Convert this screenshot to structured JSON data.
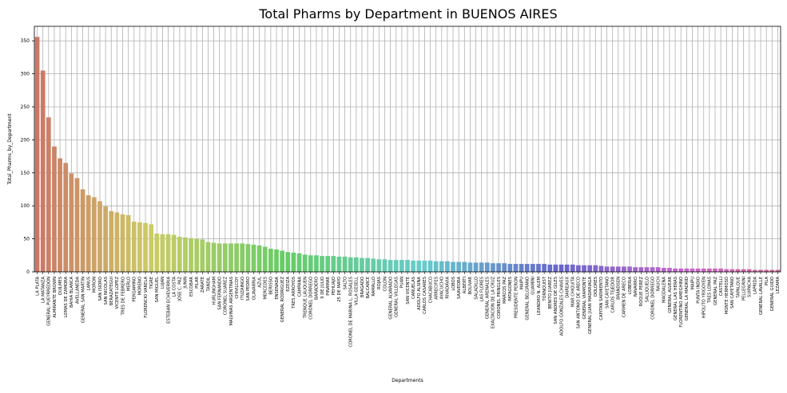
{
  "chart_data": {
    "type": "bar",
    "title": "Total Pharms by Department in BUENOS AIRES",
    "xlabel": "Departments",
    "ylabel": "Total_Pharms_by_Department",
    "ylim": [
      0,
      372
    ],
    "yticks": [
      0,
      50,
      100,
      150,
      200,
      250,
      300,
      350
    ],
    "grid": true,
    "palette": "husl",
    "categories": [
      "LA PLATA",
      "LA MATANZA",
      "GENERAL PUEYRREDON",
      "ALMIRANTE BROWN",
      "QUILMES",
      "LOMAS DE ZAMORA",
      "BAHIA BLANCA",
      "AVELLANEDA",
      "GENERAL SAN MARTIN",
      "LANUS",
      "MORON",
      "SAN ISIDRO",
      "SAN NICOLAS",
      "BERAZATEGUI",
      "VICENTE LOPEZ",
      "TRES DE FEBRERO",
      "MERLO",
      "PERGAMINO",
      "MORENO",
      "FLORENCIO VARELA",
      "TIGRE",
      "SAN MIGUEL",
      "LUJAN",
      "ESTEBAN ECHEVERRIA",
      "LA COSTA",
      "JOSE C. PAZ",
      "JUNIN",
      "ESCOBAR",
      "PILAR",
      "ZARATE",
      "TANDIL",
      "HURLINGHAM",
      "SAN FERNANDO",
      "CORONEL SUAREZ",
      "MALVINAS ARGENTINAS",
      "CHIVILCOY",
      "ITUZAINGO",
      "SAN PEDRO",
      "OLAVARRIA",
      "AZUL",
      "MERCEDES",
      "BERISSO",
      "ENSENADA",
      "GENERAL RODRIGUEZ",
      "EZEIZA",
      "TRES ARROYOS",
      "CAMPANA",
      "TRENQUE LAUQUEN",
      "CORONEL DORREGO",
      "BARADERO",
      "9 DE JULIO",
      "PINAMAR",
      "PEHUAJO",
      "25 DE MAYO",
      "SALTO",
      "CORONEL DE MARINA L. ROSALES",
      "VILLA GESELL",
      "BRAGADO",
      "BALCARCE",
      "RAMALLO",
      "ROJAS",
      "COLON",
      "GENERAL ALVARADO",
      "GENERAL VILLEGAS",
      "PUAN",
      "SAN VICENTE",
      "CAÑUELAS",
      "ADOLFO ALSINA",
      "CARLOS CASARES",
      "CHACABUCO",
      "ARRECIFES",
      "AYACUCHO",
      "RIVADAVIA",
      "LOBOS",
      "SAAVEDRA",
      "ALBERTI",
      "BOLIVAR",
      "SALADILLO",
      "LAS FLORES",
      "GENERAL ARENALES",
      "EXALTACION DE LA CRUZ",
      "CORONEL PRINGLES",
      "MARCOS PAZ",
      "PATAGONES",
      "PRESIDENTE PERON",
      "MAIPU",
      "GENERAL BELGRANO",
      "GUAMINI",
      "LEANDRO N. ALEM",
      "TORNQUIST",
      "BENITO JUAREZ",
      "SAN ANDRES DE GILES",
      "ADOLFO GONZALES CHAVES",
      "DAIREAUX",
      "MAR CHIQUITA",
      "SAN ANTONIO DE ARECO",
      "GENERAL VIAMONTE",
      "GENERAL JUAN MADARIAGA",
      "DOLORES",
      "CAPITAN SARMIENTO",
      "SAN CAYETANO",
      "CARLOS TEJEDOR",
      "BRANDSEN",
      "CARMEN DE ARECO",
      "LOBERIA",
      "NAVARRO",
      "ROQUE PEREZ",
      "SALLIQUELO",
      "CORONEL DORREGO",
      "RAUCH",
      "MAGDALENA",
      "GENERAL ALVEAR",
      "GENERAL LAS HERAS",
      "FLORENTINO AMEGHINO",
      "GENERAL LA MADRID",
      "MAIPU",
      "PUNTA INDIO",
      "HIPOLITO YRIGOYEN",
      "TRES LOMAS",
      "GENERAL PAZ",
      "CASTELLI",
      "MONTE HERMOSO",
      "SAN CAYETANO",
      "TAPALQUE",
      "PELLEGRINI",
      "SUIPACHA",
      "LAPRIDA",
      "GENERAL LAVALLE",
      "PILA",
      "GENERAL GUIDO",
      "LEZAMA"
    ],
    "values": [
      356,
      305,
      234,
      190,
      172,
      165,
      149,
      142,
      125,
      116,
      113,
      107,
      99,
      92,
      90,
      87,
      86,
      76,
      75,
      74,
      72,
      58,
      57,
      57,
      56,
      53,
      52,
      51,
      50,
      49,
      45,
      44,
      43,
      43,
      43,
      43,
      43,
      42,
      41,
      40,
      38,
      35,
      34,
      32,
      30,
      29,
      28,
      26,
      25,
      25,
      24,
      24,
      24,
      23,
      23,
      22,
      22,
      21,
      21,
      20,
      19,
      19,
      18,
      18,
      18,
      18,
      17,
      17,
      17,
      17,
      16,
      16,
      16,
      15,
      15,
      15,
      14,
      14,
      14,
      14,
      13,
      13,
      13,
      12,
      12,
      12,
      12,
      12,
      12,
      12,
      11,
      11,
      11,
      11,
      11,
      10,
      10,
      10,
      10,
      9,
      8,
      8,
      8,
      8,
      8,
      7,
      7,
      7,
      7,
      7,
      6,
      6,
      5,
      5,
      5,
      5,
      5,
      5,
      5,
      5,
      5,
      4,
      4,
      4,
      4,
      4,
      3,
      3,
      3,
      3,
      3
    ]
  }
}
